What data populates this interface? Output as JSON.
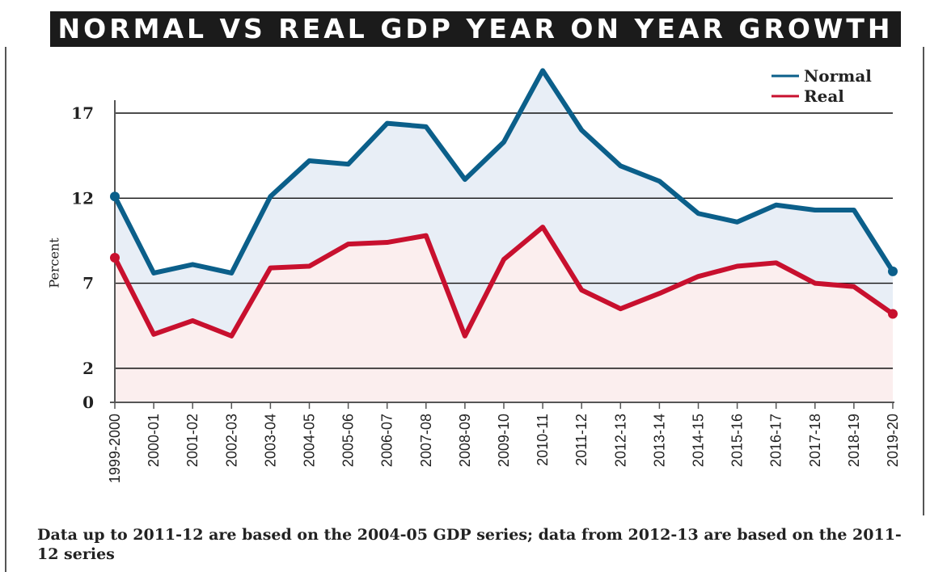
{
  "chart_data": {
    "type": "line",
    "title": "NORMAL VS REAL GDP YEAR ON YEAR GROWTH",
    "ylabel": "Percent",
    "xlabel": "",
    "ylim": [
      0,
      19.5
    ],
    "yticks": [
      0,
      2,
      7,
      12,
      17
    ],
    "grid": true,
    "legend_position": "top-right",
    "x": [
      "1999-2000",
      "2000-01",
      "2001-02",
      "2002-03",
      "2003-04",
      "2004-05",
      "2005-06",
      "2006-07",
      "2007-08",
      "2008-09",
      "2009-10",
      "2010-11",
      "2011-12",
      "2012-13",
      "2013-14",
      "2014-15",
      "2015-16",
      "2016-17",
      "2017-18",
      "2018-19",
      "2019-20"
    ],
    "series": [
      {
        "name": "Normal",
        "color": "#0b5f8a",
        "fill": "#e8eef6",
        "values": [
          12.1,
          7.6,
          8.1,
          7.6,
          12.1,
          14.2,
          14.0,
          16.4,
          16.2,
          13.1,
          15.3,
          19.5,
          16.0,
          13.9,
          13.0,
          11.1,
          10.6,
          11.6,
          11.3,
          11.3,
          7.7
        ]
      },
      {
        "name": "Real",
        "color": "#c8102e",
        "fill": "#fbeeee",
        "values": [
          8.5,
          4.0,
          4.8,
          3.9,
          7.9,
          8.0,
          9.3,
          9.4,
          9.8,
          3.9,
          8.4,
          10.3,
          6.6,
          5.5,
          6.4,
          7.4,
          8.0,
          8.2,
          7.0,
          6.8,
          5.2
        ]
      }
    ]
  },
  "footnote": "Data up to 2011-12 are based on the 2004-05 GDP series; data from 2012-13 are based on the 2011-12 series"
}
